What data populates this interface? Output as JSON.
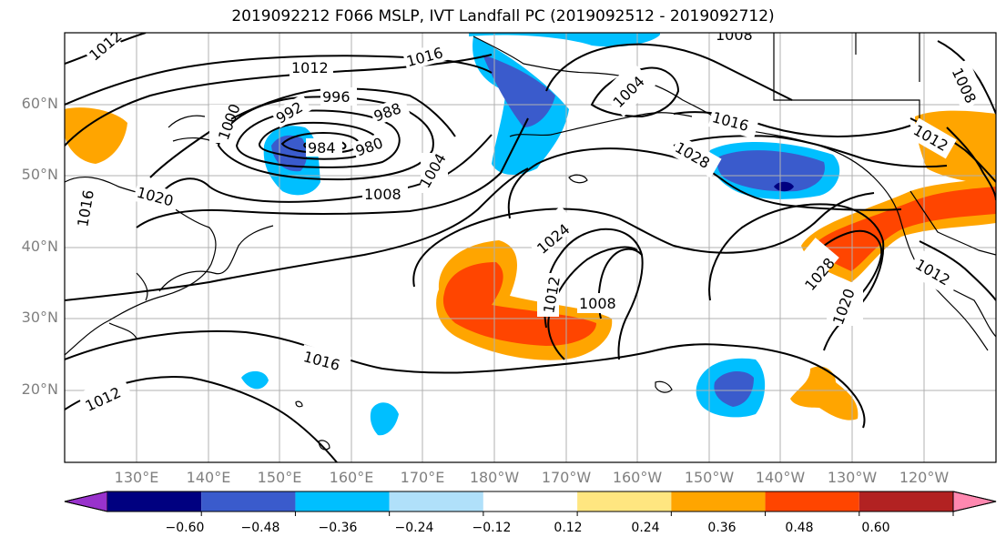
{
  "title": "2019092212 F066 MSLP, IVT Landfall PC (2019092512 - 2019092712)",
  "map": {
    "lat_labels": [
      "60°N",
      "50°N",
      "40°N",
      "30°N",
      "20°N"
    ],
    "lon_labels": [
      "130°E",
      "140°E",
      "150°E",
      "160°E",
      "170°E",
      "180°W",
      "170°W",
      "160°W",
      "150°W",
      "140°W",
      "130°W",
      "120°W"
    ],
    "contour_labels": [
      "1012",
      "1016",
      "1012",
      "1016",
      "1020",
      "1000",
      "992",
      "996",
      "988",
      "984",
      "980",
      "1004",
      "1008",
      "1008",
      "1004",
      "1016",
      "1028",
      "1012",
      "1024",
      "1012",
      "1008",
      "1016",
      "1012",
      "1028",
      "1020",
      "1012",
      "1008"
    ],
    "colors": {
      "pos_weak": "#ffa500",
      "pos_mid": "#ff4500",
      "pos_strong": "#b22222",
      "neg_weak": "#00bfff",
      "neg_mid": "#3a5bcc",
      "neg_strong": "#000080",
      "grid": "#b0b0b0"
    }
  },
  "colorbar": {
    "ticks": [
      "−0.60",
      "−0.48",
      "−0.36",
      "−0.24",
      "−0.12",
      "0.12",
      "0.24",
      "0.36",
      "0.48",
      "0.60"
    ],
    "colors": [
      "#9932cc",
      "#000080",
      "#3a5bcc",
      "#00bfff",
      "#b0e0fa",
      "#ffffff",
      "#ffe680",
      "#ffa500",
      "#ff4500",
      "#b22222",
      "#ff88b0"
    ]
  }
}
